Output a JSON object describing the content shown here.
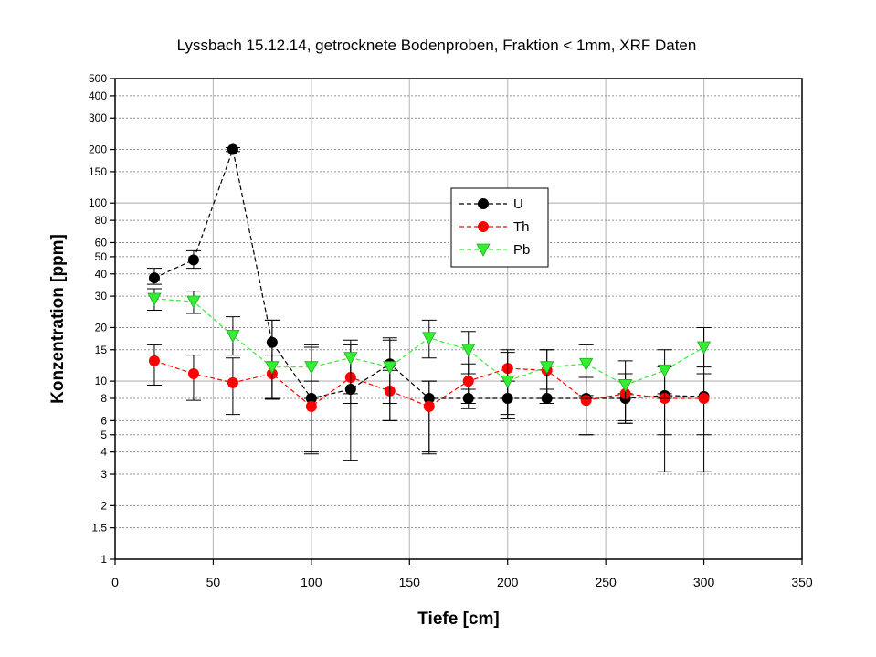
{
  "chart_data": {
    "type": "scatter",
    "title": "Lyssbach 15.12.14, getrocknete Bodenproben, Fraktion < 1mm, XRF Daten",
    "xlabel": "Tiefe [cm]",
    "ylabel": "Konzentration [ppm]",
    "xlim": [
      0,
      350
    ],
    "ylim": [
      1,
      500
    ],
    "yscale": "log",
    "grid": true,
    "legend_position": "upper-middle",
    "x_ticks": [
      "0",
      "50",
      "100",
      "150",
      "200",
      "250",
      "300",
      "350"
    ],
    "y_ticks": [
      "1",
      "1.5",
      "2",
      "3",
      "4",
      "5",
      "6",
      "8",
      "10",
      "15",
      "20",
      "30",
      "40",
      "50",
      "60",
      "80",
      "100",
      "150",
      "200",
      "300",
      "400",
      "500"
    ],
    "series": [
      {
        "name": "U",
        "color": "#000000",
        "marker": "circle",
        "x": [
          20,
          40,
          60,
          80,
          100,
          120,
          140,
          160,
          180,
          200,
          220,
          240,
          260,
          280,
          300
        ],
        "y": [
          38,
          48,
          200,
          16.5,
          8,
          9,
          12.5,
          8,
          8,
          8,
          8,
          8,
          8,
          8.3,
          8.2
        ],
        "err_low": [
          35,
          43,
          195,
          8,
          4,
          3.6,
          7.5,
          4,
          7,
          6.2,
          7.5,
          5,
          5.8,
          3.1,
          3.1
        ],
        "err_high": [
          43,
          54,
          205,
          22,
          15.5,
          16,
          17.5,
          10,
          9,
          10,
          9,
          8.3,
          8.5,
          8.5,
          20
        ]
      },
      {
        "name": "Th",
        "color": "#ff0000",
        "marker": "circle",
        "x": [
          20,
          40,
          60,
          80,
          100,
          120,
          140,
          160,
          180,
          200,
          220,
          240,
          260,
          280,
          300
        ],
        "y": [
          13,
          11,
          9.8,
          11,
          7.2,
          10.5,
          8.8,
          7.2,
          10,
          11.8,
          11.5,
          7.8,
          8.5,
          8,
          8
        ],
        "err_low": [
          9.5,
          7.8,
          6.5,
          7.9,
          3.9,
          7.5,
          6,
          3.9,
          7.5,
          6.2,
          7.5,
          5,
          6,
          5,
          5
        ],
        "err_high": [
          16,
          14,
          13.5,
          14,
          10,
          14,
          11.5,
          10,
          12.5,
          14.5,
          15,
          10.5,
          11,
          12,
          11
        ]
      },
      {
        "name": "Pb",
        "color": "#33ee33",
        "marker": "triangle-down",
        "x": [
          20,
          40,
          60,
          80,
          100,
          120,
          140,
          160,
          180,
          200,
          220,
          240,
          260,
          280,
          300
        ],
        "y": [
          29,
          28,
          18,
          12,
          12,
          13.5,
          12,
          17.5,
          15,
          10,
          12,
          12.5,
          9.5,
          11.5,
          15.5
        ],
        "err_low": [
          25,
          24,
          14,
          8,
          8,
          8.5,
          6,
          13.5,
          11,
          6.5,
          8,
          8,
          5.8,
          8,
          12
        ],
        "err_high": [
          33,
          32,
          23,
          22,
          16,
          17,
          17,
          22,
          19,
          15,
          15,
          16,
          13,
          15,
          20
        ]
      }
    ]
  }
}
